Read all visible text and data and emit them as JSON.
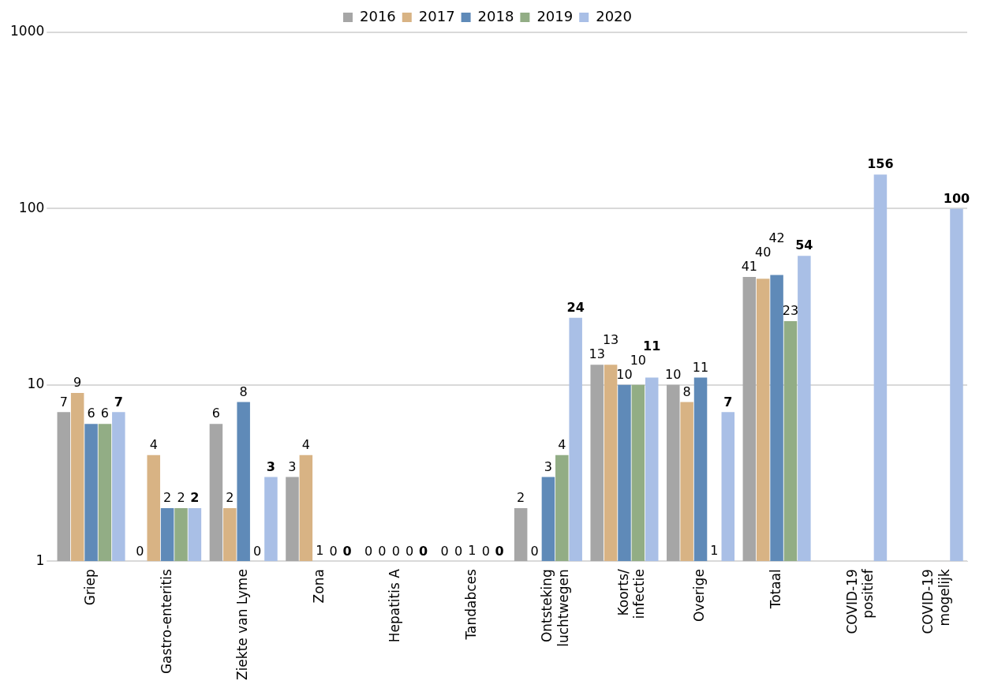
{
  "chart_data": {
    "type": "bar",
    "categories": [
      "Griep",
      "Gastro-enteritis",
      "Ziekte van Lyme",
      "Zona",
      "Hepatitis A",
      "Tandabces",
      "Ontsteking\nluchtwegen",
      "Koorts/\ninfectie",
      "Overige",
      "Totaal",
      "COVID-19\npositief",
      "COVID-19\nmogelijk"
    ],
    "series": [
      {
        "name": "2016",
        "color": "#a6a6a6",
        "values": [
          7,
          null,
          6,
          3,
          null,
          null,
          2,
          13,
          10,
          41,
          null,
          null
        ],
        "value_labels": [
          "7",
          "0",
          "6",
          "3",
          "0",
          "0",
          "2",
          "13",
          "10",
          "41",
          null,
          null
        ]
      },
      {
        "name": "2017",
        "color": "#d8b384",
        "values": [
          9,
          4,
          2,
          4,
          null,
          null,
          null,
          13,
          8,
          40,
          null,
          null
        ],
        "value_labels": [
          "9",
          "4",
          "2",
          "4",
          "0",
          "0",
          "0",
          "13",
          "8",
          "40",
          null,
          null
        ]
      },
      {
        "name": "2018",
        "color": "#5f8ab8",
        "values": [
          6,
          2,
          8,
          1,
          null,
          1,
          3,
          10,
          11,
          42,
          null,
          null
        ],
        "value_labels": [
          "6",
          "2",
          "8",
          "1",
          "0",
          "1",
          "3",
          "10",
          "11",
          "42",
          null,
          null
        ]
      },
      {
        "name": "2019",
        "color": "#92ad85",
        "values": [
          6,
          2,
          null,
          null,
          null,
          null,
          4,
          10,
          1,
          23,
          null,
          null
        ],
        "value_labels": [
          "6",
          "2",
          "0",
          "0",
          "0",
          "0",
          "4",
          "10",
          "1",
          "23",
          null,
          null
        ]
      },
      {
        "name": "2020",
        "color": "#a9bfe6",
        "values": [
          7,
          2,
          3,
          null,
          null,
          null,
          24,
          11,
          7,
          54,
          156,
          100
        ],
        "value_labels": [
          "7",
          "2",
          "3",
          "0",
          "0",
          "0",
          "24",
          "11",
          "7",
          "54",
          "156",
          "100"
        ]
      }
    ],
    "log": true,
    "ylim": [
      1,
      1000
    ],
    "yticks": [
      1,
      10,
      100,
      1000
    ],
    "grid": "y",
    "legend": "top"
  }
}
